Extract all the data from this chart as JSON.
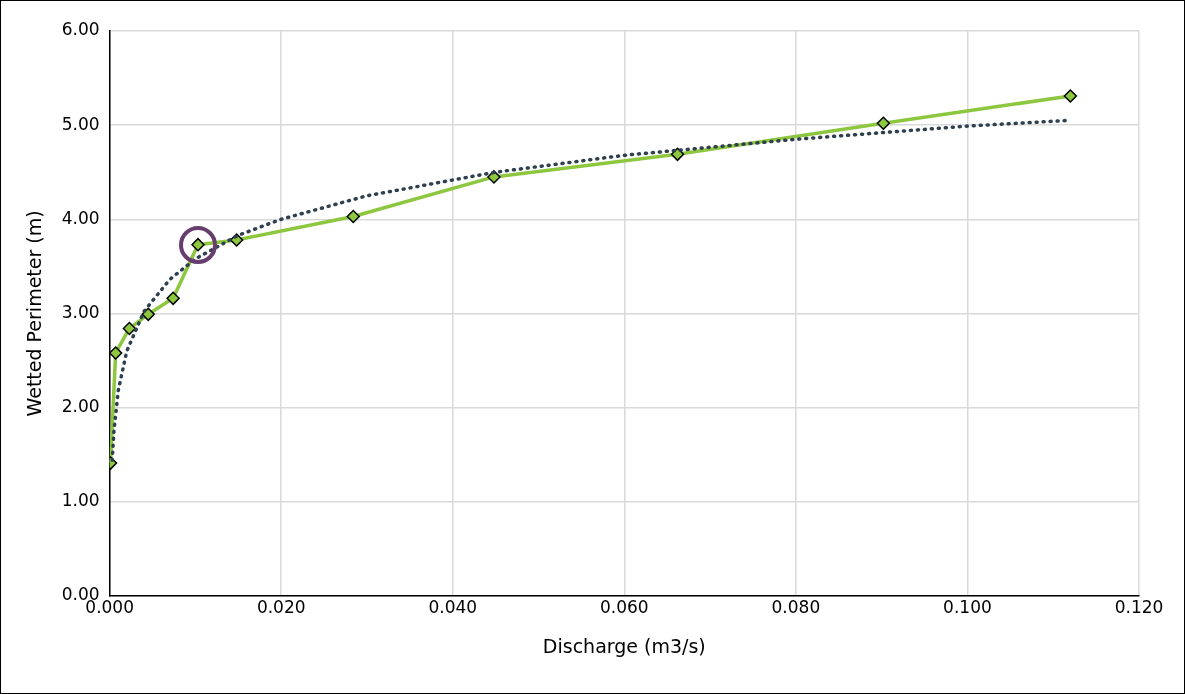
{
  "chart_data": {
    "type": "line",
    "xlabel": "Discharge (m3/s)",
    "ylabel": "Wetted Perimeter (m)",
    "xlim": [
      0,
      0.12
    ],
    "xticks": [
      {
        "value": 0,
        "label": "0.000"
      },
      {
        "value": 0.02,
        "label": "0.020"
      },
      {
        "value": 0.04,
        "label": "0.040"
      },
      {
        "value": 0.06,
        "label": "0.060"
      },
      {
        "value": 0.08,
        "label": "0.080"
      },
      {
        "value": 0.1,
        "label": "0.100"
      },
      {
        "value": 0.12,
        "label": "0.120"
      }
    ],
    "ylim": [
      0,
      6
    ],
    "yticks": [
      {
        "value": 0,
        "label": "0.00"
      },
      {
        "value": 1,
        "label": "1.00"
      },
      {
        "value": 2,
        "label": "2.00"
      },
      {
        "value": 3,
        "label": "3.00"
      },
      {
        "value": 4,
        "label": "4.00"
      },
      {
        "value": 5,
        "label": "5.00"
      },
      {
        "value": 6,
        "label": "6.00"
      }
    ],
    "grid": true,
    "legend": false,
    "series": [
      {
        "type": "line",
        "color": "#8dc63f",
        "marker": "diamond",
        "line_style": "solid",
        "x": [
          0.0001,
          0.0007,
          0.0023,
          0.0045,
          0.0074,
          0.0103,
          0.0148,
          0.0284,
          0.0448,
          0.0662,
          0.0902,
          0.112
        ],
        "values": [
          1.41,
          2.58,
          2.84,
          2.99,
          3.16,
          3.73,
          3.78,
          4.03,
          4.45,
          4.69,
          5.02,
          5.31
        ]
      },
      {
        "type": "line",
        "color": "#2e3f4f",
        "marker": "none",
        "line_style": "dotted",
        "x": [
          0.0003,
          0.0005,
          0.001,
          0.002,
          0.004,
          0.007,
          0.01,
          0.015,
          0.02,
          0.03,
          0.045,
          0.06,
          0.08,
          0.1,
          0.1117
        ],
        "values": [
          1.44,
          1.75,
          2.18,
          2.6,
          3.02,
          3.36,
          3.58,
          3.83,
          4.0,
          4.25,
          4.5,
          4.68,
          4.85,
          4.99,
          5.05
        ]
      }
    ]
  }
}
